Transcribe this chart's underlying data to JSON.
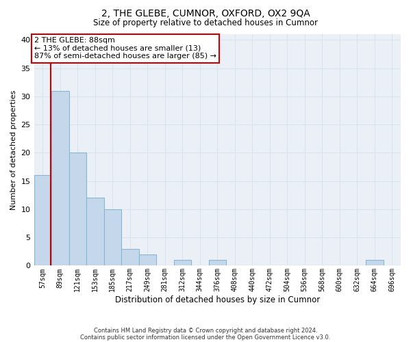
{
  "title": "2, THE GLEBE, CUMNOR, OXFORD, OX2 9QA",
  "subtitle": "Size of property relative to detached houses in Cumnor",
  "xlabel": "Distribution of detached houses by size in Cumnor",
  "ylabel": "Number of detached properties",
  "categories": [
    "57sqm",
    "89sqm",
    "121sqm",
    "153sqm",
    "185sqm",
    "217sqm",
    "249sqm",
    "281sqm",
    "312sqm",
    "344sqm",
    "376sqm",
    "408sqm",
    "440sqm",
    "472sqm",
    "504sqm",
    "536sqm",
    "568sqm",
    "600sqm",
    "632sqm",
    "664sqm",
    "696sqm"
  ],
  "values": [
    16,
    31,
    20,
    12,
    10,
    3,
    2,
    0,
    1,
    0,
    1,
    0,
    0,
    0,
    0,
    0,
    0,
    0,
    0,
    1,
    0
  ],
  "bar_color": "#c5d8eb",
  "bar_edge_color": "#8ab5d0",
  "property_line_color": "#cc0000",
  "annotation_text": "2 THE GLEBE: 88sqm\n← 13% of detached houses are smaller (13)\n87% of semi-detached houses are larger (85) →",
  "annotation_box_color": "#ffffff",
  "annotation_box_edge_color": "#cc0000",
  "ylim": [
    0,
    41
  ],
  "yticks": [
    0,
    5,
    10,
    15,
    20,
    25,
    30,
    35,
    40
  ],
  "grid_color": "#d8e4ef",
  "bg_color": "#eaf0f6",
  "footer_line1": "Contains HM Land Registry data © Crown copyright and database right 2024.",
  "footer_line2": "Contains public sector information licensed under the Open Government Licence v3.0."
}
